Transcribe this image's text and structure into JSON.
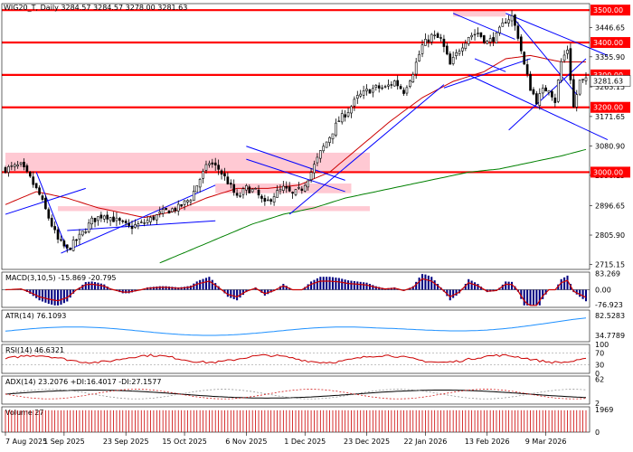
{
  "header": {
    "symbol": "WIG20_T",
    "timeframe": "Daily",
    "ohlc": "3284.57 3284.57 3278.00 3281.63"
  },
  "colors": {
    "resistance": "#ff0000",
    "zone": "#ffc0cb",
    "channel": "#0000ff",
    "ma_red": "#cc0000",
    "ma_green": "#008000",
    "macd_hist": "#000080",
    "macd_signal": "#cc0000",
    "atr": "#1e90ff",
    "rsi": "#cc0000",
    "adx": "#000000",
    "volume": "#cc0000"
  },
  "chart_data": [
    {
      "panel": "price",
      "type": "candlestick",
      "ylim": [
        2700,
        3520
      ],
      "y_ticks": [
        "3446.65",
        "3355.90",
        "3263.15",
        "3171.65",
        "3080.90",
        "2990.15",
        "2896.65",
        "2805.90",
        "2715.15"
      ],
      "x_ticks": [
        "7 Aug 2025",
        "1 Sep 2025",
        "23 Sep 2025",
        "15 Oct 2025",
        "6 Nov 2025",
        "1 Dec 2025",
        "23 Dec 2025",
        "22 Jan 2026",
        "13 Feb 2026",
        "9 Mar 2026"
      ],
      "anchors": [
        [
          0,
          3010
        ],
        [
          5,
          3020
        ],
        [
          8,
          2980
        ],
        [
          11,
          2930
        ],
        [
          14,
          2860
        ],
        [
          17,
          2790
        ],
        [
          20,
          2760
        ],
        [
          24,
          2800
        ],
        [
          28,
          2850
        ],
        [
          32,
          2870
        ],
        [
          36,
          2850
        ],
        [
          40,
          2830
        ],
        [
          44,
          2840
        ],
        [
          48,
          2860
        ],
        [
          52,
          2880
        ],
        [
          56,
          2890
        ],
        [
          60,
          2920
        ],
        [
          63,
          2980
        ],
        [
          66,
          3030
        ],
        [
          69,
          3010
        ],
        [
          72,
          2970
        ],
        [
          75,
          2920
        ],
        [
          78,
          2950
        ],
        [
          81,
          2940
        ],
        [
          84,
          2900
        ],
        [
          87,
          2930
        ],
        [
          90,
          2950
        ],
        [
          93,
          2930
        ],
        [
          96,
          2950
        ],
        [
          99,
          3000
        ],
        [
          102,
          3060
        ],
        [
          105,
          3110
        ],
        [
          108,
          3160
        ],
        [
          111,
          3190
        ],
        [
          114,
          3230
        ],
        [
          117,
          3250
        ],
        [
          120,
          3260
        ],
        [
          123,
          3260
        ],
        [
          126,
          3280
        ],
        [
          129,
          3250
        ],
        [
          132,
          3310
        ],
        [
          135,
          3390
        ],
        [
          138,
          3420
        ],
        [
          141,
          3410
        ],
        [
          144,
          3330
        ],
        [
          147,
          3380
        ],
        [
          150,
          3420
        ],
        [
          153,
          3430
        ],
        [
          156,
          3400
        ],
        [
          159,
          3420
        ],
        [
          162,
          3470
        ],
        [
          164,
          3480
        ],
        [
          166,
          3420
        ],
        [
          168,
          3330
        ],
        [
          170,
          3260
        ],
        [
          172,
          3220
        ],
        [
          174,
          3250
        ],
        [
          176,
          3260
        ],
        [
          178,
          3220
        ],
        [
          180,
          3340
        ],
        [
          182,
          3380
        ],
        [
          184,
          3200
        ],
        [
          186,
          3280
        ],
        [
          188,
          3282
        ]
      ],
      "last_close": "3281.63",
      "levels": [
        {
          "value": 3500,
          "label": "3500.00"
        },
        {
          "value": 3400,
          "label": "3400.00"
        },
        {
          "value": 3300,
          "label": "3300.00"
        },
        {
          "value": 3200,
          "label": "3200.00"
        },
        {
          "value": 3000,
          "label": "3000.00"
        }
      ],
      "zones": [
        {
          "x0": 0,
          "x1": 118,
          "y0": 3000,
          "y1": 3060
        },
        {
          "x0": 17,
          "x1": 118,
          "y0": 2880,
          "y1": 2895
        },
        {
          "x0": 145,
          "x1": 162,
          "y0": 3480,
          "y1": 3500
        },
        {
          "x0": 68,
          "x1": 112,
          "y0": 2935,
          "y1": 2965
        }
      ],
      "trendlines": [
        {
          "x0": 0,
          "y0": 2870,
          "x1": 26,
          "y1": 2950
        },
        {
          "x0": 10,
          "y0": 3000,
          "x1": 20,
          "y1": 2760
        },
        {
          "x0": 18,
          "y0": 2750,
          "x1": 68,
          "y1": 2960
        },
        {
          "x0": 20,
          "y0": 2820,
          "x1": 68,
          "y1": 2850
        },
        {
          "x0": 78,
          "y0": 3080,
          "x1": 110,
          "y1": 2975
        },
        {
          "x0": 78,
          "y0": 3040,
          "x1": 110,
          "y1": 2940
        },
        {
          "x0": 92,
          "y0": 2870,
          "x1": 142,
          "y1": 3270
        },
        {
          "x0": 142,
          "y0": 3260,
          "x1": 170,
          "y1": 3350
        },
        {
          "x0": 145,
          "y0": 3490,
          "x1": 165,
          "y1": 3410
        },
        {
          "x0": 152,
          "y0": 3350,
          "x1": 162,
          "y1": 3310
        },
        {
          "x0": 150,
          "y0": 3300,
          "x1": 195,
          "y1": 3100
        },
        {
          "x0": 162,
          "y0": 3490,
          "x1": 195,
          "y1": 3360
        },
        {
          "x0": 165,
          "y0": 3470,
          "x1": 185,
          "y1": 3240
        },
        {
          "x0": 163,
          "y0": 3130,
          "x1": 188,
          "y1": 3350
        }
      ],
      "ma_red": [
        [
          0,
          2900
        ],
        [
          10,
          2940
        ],
        [
          20,
          2920
        ],
        [
          30,
          2890
        ],
        [
          45,
          2860
        ],
        [
          55,
          2880
        ],
        [
          65,
          2920
        ],
        [
          75,
          2950
        ],
        [
          85,
          2950
        ],
        [
          95,
          2960
        ],
        [
          105,
          3000
        ],
        [
          115,
          3080
        ],
        [
          125,
          3160
        ],
        [
          135,
          3230
        ],
        [
          145,
          3280
        ],
        [
          155,
          3310
        ],
        [
          162,
          3350
        ],
        [
          170,
          3360
        ],
        [
          180,
          3340
        ],
        [
          188,
          3340
        ]
      ],
      "ma_green": [
        [
          50,
          2720
        ],
        [
          60,
          2760
        ],
        [
          70,
          2800
        ],
        [
          80,
          2840
        ],
        [
          90,
          2870
        ],
        [
          100,
          2890
        ],
        [
          110,
          2920
        ],
        [
          120,
          2940
        ],
        [
          130,
          2960
        ],
        [
          140,
          2980
        ],
        [
          150,
          3000
        ],
        [
          160,
          3010
        ],
        [
          170,
          3030
        ],
        [
          180,
          3050
        ],
        [
          188,
          3070
        ]
      ]
    },
    {
      "panel": "macd",
      "type": "bar",
      "label": "MACD(3,10,5) -15.869 -20.795",
      "y_ticks": [
        "83.269",
        "0.00",
        "-76.923"
      ],
      "ylim": [
        -90,
        90
      ]
    },
    {
      "panel": "atr",
      "type": "line",
      "label": "ATR(14) 76.1093",
      "y_ticks": [
        "82.5283",
        "34.7789"
      ],
      "ylim": [
        20,
        95
      ]
    },
    {
      "panel": "rsi",
      "type": "line",
      "label": "RSI(14) 46.6321",
      "y_ticks": [
        "100",
        "70",
        "30",
        "0"
      ],
      "ylim": [
        0,
        100
      ]
    },
    {
      "panel": "adx",
      "type": "line",
      "label": "ADX(14) 23.2076 +DI:16.4017 -DI:27.1577",
      "y_ticks": [
        "62",
        "2"
      ],
      "ylim": [
        0,
        70
      ]
    },
    {
      "panel": "volume",
      "type": "bar",
      "label": "Volume 27",
      "y_ticks": [
        "1969",
        "0"
      ],
      "ylim": [
        0,
        2200
      ]
    }
  ]
}
